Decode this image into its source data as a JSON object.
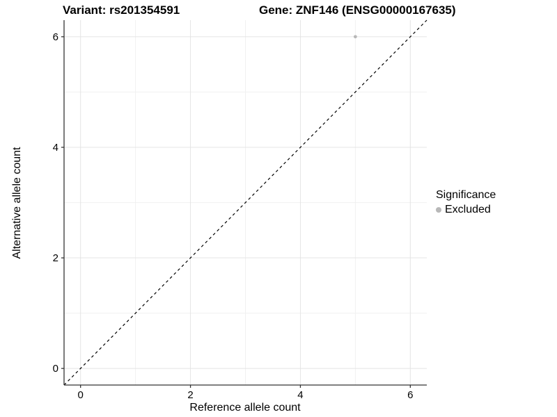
{
  "header": {
    "variant_title": "Variant: rs201354591",
    "gene_title": "Gene: ZNF146 (ENSG00000167635)"
  },
  "axes": {
    "x_label": "Reference allele count",
    "y_label": "Alternative allele count",
    "x_tick_labels": [
      "0",
      "2",
      "4",
      "6"
    ],
    "y_tick_labels": [
      "0",
      "2",
      "4",
      "6"
    ]
  },
  "legend": {
    "title": "Significance",
    "items": [
      {
        "label": "Excluded",
        "color": "#b8b8b8"
      }
    ]
  },
  "chart_data": {
    "type": "scatter",
    "title": "Variant: rs201354591   Gene: ZNF146 (ENSG00000167635)",
    "xlabel": "Reference allele count",
    "ylabel": "Alternative allele count",
    "xlim": [
      -0.3,
      6.3
    ],
    "ylim": [
      -0.3,
      6.3
    ],
    "x_major_ticks": [
      0,
      2,
      4,
      6
    ],
    "y_major_ticks": [
      0,
      2,
      4,
      6
    ],
    "x_minor_ticks": [
      1,
      3,
      5
    ],
    "y_minor_ticks": [
      1,
      3,
      5
    ],
    "grid": true,
    "legend_position": "right",
    "series": [
      {
        "name": "Excluded",
        "color": "#b8b8b8",
        "points": [
          {
            "x": 5,
            "y": 6
          }
        ]
      }
    ],
    "reference_line": {
      "slope": 1,
      "intercept": 0,
      "style": "dashed",
      "color": "#000000"
    }
  },
  "colors": {
    "background": "#ffffff",
    "grid_major": "#e4e4e4",
    "grid_minor": "#f1f1f1",
    "axis_line": "#333333",
    "point": "#b8b8b8",
    "text": "#000000"
  }
}
